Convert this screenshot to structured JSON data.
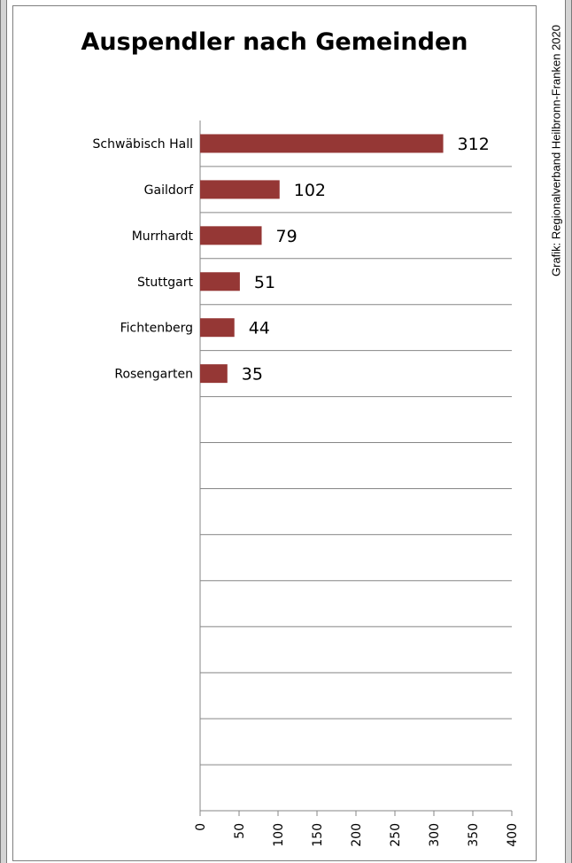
{
  "title": "Auspendler nach Gemeinden",
  "credit": "Grafik: Regionalverband Heilbronn-Franken 2020",
  "chart_data": {
    "type": "bar",
    "orientation": "horizontal",
    "title": "Auspendler nach Gemeinden",
    "categories": [
      "Schwäbisch Hall",
      "Gaildorf",
      "Murrhardt",
      "Stuttgart",
      "Fichtenberg",
      "Rosengarten",
      "",
      "",
      "",
      "",
      "",
      "",
      "",
      "",
      ""
    ],
    "values": [
      312,
      102,
      79,
      51,
      44,
      35,
      null,
      null,
      null,
      null,
      null,
      null,
      null,
      null,
      null
    ],
    "xlim": [
      0,
      400
    ],
    "xticks": [
      0,
      50,
      100,
      150,
      200,
      250,
      300,
      350,
      400
    ],
    "grid": true,
    "bar_color": "#953735",
    "legend": "none"
  }
}
